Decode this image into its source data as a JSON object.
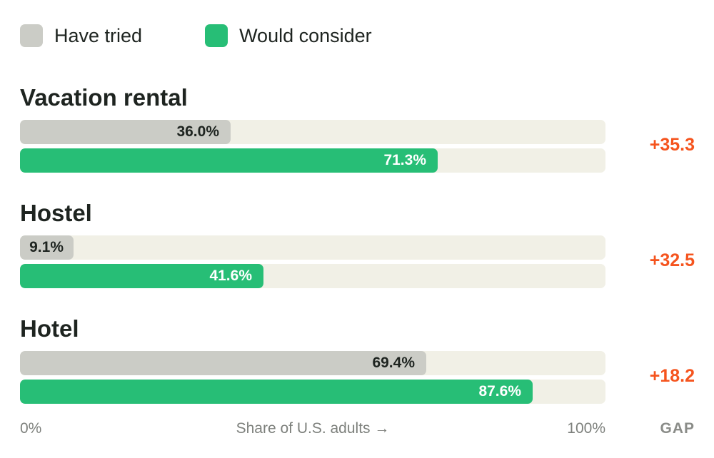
{
  "legend": [
    {
      "label": "Have tried",
      "color": "#cbccc6"
    },
    {
      "label": "Would consider",
      "color": "#27be76"
    }
  ],
  "chart_data": {
    "type": "bar",
    "orientation": "horizontal",
    "categories": [
      "Vacation rental",
      "Hostel",
      "Hotel"
    ],
    "series": [
      {
        "name": "Have tried",
        "values": [
          36.0,
          9.1,
          69.4
        ],
        "labels": [
          "36.0%",
          "9.1%",
          "69.4%"
        ],
        "color": "#cbccc6"
      },
      {
        "name": "Would consider",
        "values": [
          71.3,
          41.6,
          87.6
        ],
        "labels": [
          "71.3%",
          "41.6%",
          "87.6%"
        ],
        "color": "#27be76"
      }
    ],
    "gap": [
      "+35.3",
      "+32.5",
      "+18.2"
    ],
    "gap_color": "#f5541e",
    "xlim": [
      0,
      100
    ],
    "xlabel": "Share of U.S. adults →",
    "x_min_label": "0%",
    "x_max_label": "100%",
    "gap_header": "GAP",
    "legend_position": "top-left",
    "grid": false
  }
}
